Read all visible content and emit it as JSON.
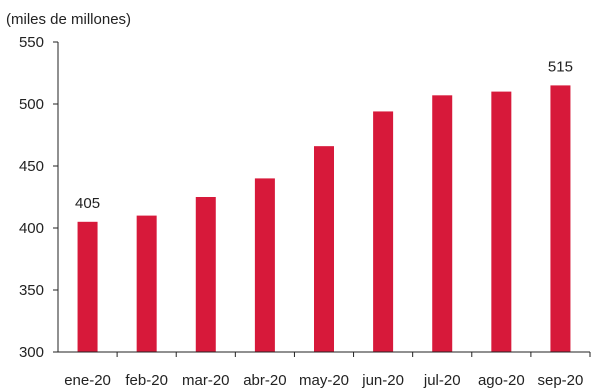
{
  "chart_data": {
    "type": "bar",
    "unit_label": "(miles de millones)",
    "categories": [
      "ene-20",
      "feb-20",
      "mar-20",
      "abr-20",
      "may-20",
      "jun-20",
      "jul-20",
      "ago-20",
      "sep-20"
    ],
    "values": [
      405,
      410,
      425,
      440,
      466,
      494,
      507,
      510,
      515
    ],
    "data_labels": [
      {
        "index": 0,
        "text": "405"
      },
      {
        "index": 8,
        "text": "515"
      }
    ],
    "y_ticks": [
      300,
      350,
      400,
      450,
      500,
      550
    ],
    "ylim": [
      300,
      550
    ],
    "grid": false,
    "bar_color": "#d7193a",
    "axis_color": "#222222"
  }
}
